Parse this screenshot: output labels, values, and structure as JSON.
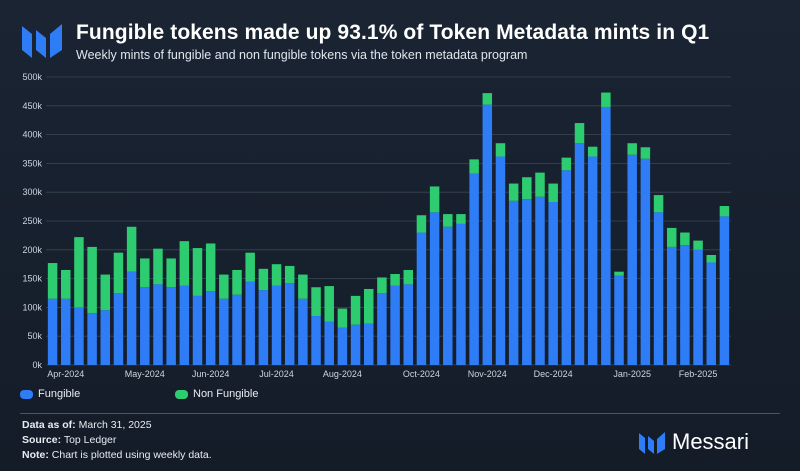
{
  "header": {
    "title": "Fungible tokens made up 93.1% of Token Metadata mints in Q1",
    "subtitle": "Weekly mints of fungible and non fungible tokens via the token metadata program"
  },
  "colors": {
    "fungible": "#2e7cf6",
    "non_fungible": "#2ecc71",
    "grid": "#3a4556",
    "text": "#cfd6df"
  },
  "chart_data": {
    "type": "bar",
    "stacked": true,
    "grid": true,
    "legend_position": "bottom-left",
    "ylim": [
      0,
      500000
    ],
    "y_ticks": [
      0,
      50000,
      100000,
      150000,
      200000,
      250000,
      300000,
      350000,
      400000,
      450000,
      500000
    ],
    "y_tick_labels": [
      "0k",
      "50k",
      "100k",
      "150k",
      "200k",
      "250k",
      "300k",
      "350k",
      "400k",
      "450k",
      "500k"
    ],
    "x_tick_labels": [
      {
        "index": 1,
        "label": "Apr-2024"
      },
      {
        "index": 7,
        "label": "May-2024"
      },
      {
        "index": 12,
        "label": "Jun-2024"
      },
      {
        "index": 17,
        "label": "Jul-2024"
      },
      {
        "index": 22,
        "label": "Aug-2024"
      },
      {
        "index": 28,
        "label": "Oct-2024"
      },
      {
        "index": 33,
        "label": "Nov-2024"
      },
      {
        "index": 38,
        "label": "Dec-2024"
      },
      {
        "index": 44,
        "label": "Jan-2025"
      },
      {
        "index": 49,
        "label": "Feb-2025"
      }
    ],
    "series": [
      {
        "name": "Fungible",
        "values": [
          115000,
          115000,
          100000,
          90000,
          95000,
          125000,
          162000,
          135000,
          140000,
          135000,
          138000,
          120000,
          128000,
          115000,
          122000,
          145000,
          130000,
          138000,
          142000,
          115000,
          85000,
          75000,
          65000,
          70000,
          72000,
          125000,
          138000,
          140000,
          230000,
          265000,
          240000,
          245000,
          332000,
          452000,
          362000,
          285000,
          288000,
          292000,
          283000,
          338000,
          385000,
          362000,
          448000,
          155000,
          365000,
          358000,
          265000,
          205000,
          208000,
          200000,
          178000,
          258000
        ]
      },
      {
        "name": "Non Fungible",
        "values": [
          62000,
          50000,
          122000,
          115000,
          62000,
          70000,
          78000,
          50000,
          62000,
          50000,
          77000,
          83000,
          83000,
          42000,
          43000,
          50000,
          37000,
          37000,
          30000,
          42000,
          50000,
          62000,
          33000,
          50000,
          60000,
          27000,
          20000,
          25000,
          30000,
          45000,
          22000,
          17000,
          25000,
          20000,
          23000,
          30000,
          38000,
          42000,
          32000,
          22000,
          35000,
          17000,
          25000,
          7000,
          20000,
          20000,
          30000,
          33000,
          22000,
          16000,
          13000,
          18000
        ]
      }
    ]
  },
  "legend": {
    "fungible": "Fungible",
    "non_fungible": "Non Fungible"
  },
  "footer": {
    "data_as_of_label": "Data as of:",
    "data_as_of_value": "March 31, 2025",
    "source_label": "Source:",
    "source_value": "Top Ledger",
    "note_label": "Note:",
    "note_value": "Chart is plotted using weekly data."
  },
  "brand": {
    "name": "Messari"
  }
}
